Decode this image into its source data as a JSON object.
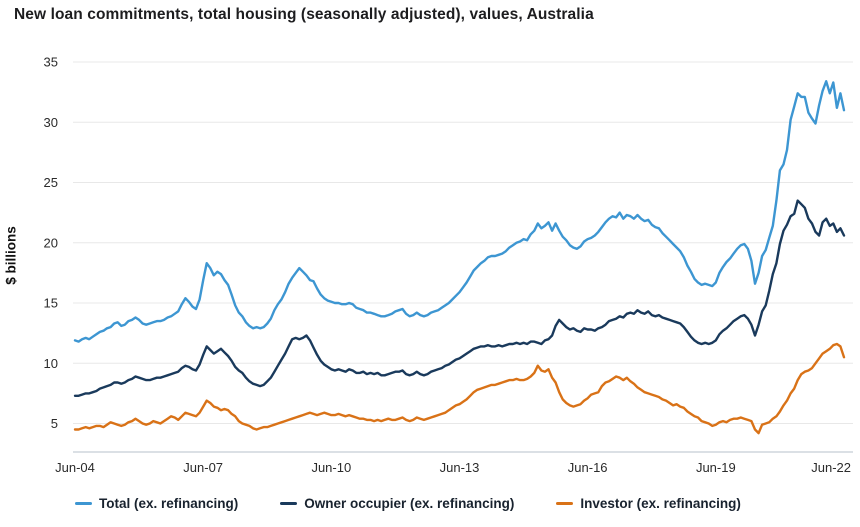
{
  "title": "New loan commitments, total housing (seasonally adjusted), values, Australia",
  "y_axis": {
    "title": "$ billions",
    "ticks": [
      35,
      30,
      25,
      20,
      15,
      10,
      5
    ]
  },
  "x_axis": {
    "ticks": [
      {
        "label": "Jun-04",
        "month_index": 0
      },
      {
        "label": "Jun-07",
        "month_index": 36
      },
      {
        "label": "Jun-10",
        "month_index": 72
      },
      {
        "label": "Jun-13",
        "month_index": 108
      },
      {
        "label": "Jun-16",
        "month_index": 144
      },
      {
        "label": "Jun-19",
        "month_index": 180
      },
      {
        "label": "Jun-22",
        "month_index": 216
      }
    ]
  },
  "legend": {
    "items": [
      {
        "label": "Total (ex. refinancing)",
        "color": "#3d96d2"
      },
      {
        "label": "Owner occupier (ex. refinancing)",
        "color": "#1a3a5c"
      },
      {
        "label": "Investor (ex. refinancing)",
        "color": "#d97217"
      }
    ]
  },
  "colors": {
    "grid": "#e8e8e8",
    "axis_line": "#c5cdd5",
    "tick_text": "#2b2b2b"
  },
  "chart_data": {
    "type": "line",
    "title": "New loan commitments, total housing (seasonally adjusted), values, Australia",
    "ylabel": "$ billions",
    "x_start": "Jun-2004",
    "x_end": "Jun-2022",
    "frequency": "monthly",
    "ylim": [
      2.6,
      35.5
    ],
    "grid": "horizontal",
    "legend_position": "bottom",
    "series": [
      {
        "name": "Total (ex. refinancing)",
        "color": "#3d96d2",
        "values": [
          11.9,
          11.8,
          12.0,
          12.1,
          12.0,
          12.2,
          12.4,
          12.6,
          12.7,
          12.9,
          13.0,
          13.3,
          13.4,
          13.1,
          13.2,
          13.5,
          13.6,
          13.8,
          13.6,
          13.3,
          13.2,
          13.3,
          13.4,
          13.5,
          13.5,
          13.6,
          13.8,
          13.9,
          14.1,
          14.3,
          14.9,
          15.4,
          15.1,
          14.7,
          14.5,
          15.3,
          16.9,
          18.3,
          17.9,
          17.3,
          17.6,
          17.4,
          16.9,
          16.5,
          15.7,
          14.8,
          14.2,
          13.9,
          13.4,
          13.1,
          12.9,
          13.0,
          12.9,
          13.0,
          13.3,
          13.7,
          14.4,
          14.9,
          15.3,
          15.9,
          16.6,
          17.1,
          17.5,
          17.9,
          17.6,
          17.3,
          16.9,
          16.8,
          16.2,
          15.7,
          15.4,
          15.2,
          15.1,
          15.0,
          15.0,
          14.9,
          14.9,
          15.0,
          14.9,
          14.6,
          14.5,
          14.4,
          14.2,
          14.2,
          14.1,
          14.0,
          13.9,
          13.9,
          14.0,
          14.1,
          14.3,
          14.4,
          14.5,
          14.1,
          13.9,
          14.0,
          14.2,
          14.0,
          13.9,
          14.0,
          14.2,
          14.3,
          14.4,
          14.6,
          14.8,
          15.0,
          15.3,
          15.6,
          15.9,
          16.3,
          16.7,
          17.2,
          17.7,
          18.0,
          18.3,
          18.5,
          18.8,
          18.9,
          18.9,
          19.0,
          19.1,
          19.3,
          19.6,
          19.8,
          20.0,
          20.1,
          20.3,
          20.2,
          20.7,
          21.0,
          21.6,
          21.2,
          21.4,
          21.7,
          21.0,
          21.6,
          21.0,
          20.5,
          20.2,
          19.8,
          19.6,
          19.5,
          19.7,
          20.1,
          20.3,
          20.4,
          20.6,
          20.9,
          21.3,
          21.7,
          22.0,
          22.2,
          22.1,
          22.5,
          22.0,
          22.3,
          22.2,
          22.0,
          22.3,
          22.0,
          21.8,
          21.9,
          21.5,
          21.3,
          21.2,
          20.8,
          20.5,
          20.2,
          19.9,
          19.6,
          19.3,
          18.8,
          18.1,
          17.6,
          17.0,
          16.7,
          16.5,
          16.6,
          16.5,
          16.4,
          16.7,
          17.5,
          18.0,
          18.4,
          18.7,
          19.1,
          19.5,
          19.8,
          19.9,
          19.5,
          18.5,
          16.6,
          17.5,
          18.9,
          19.4,
          20.4,
          21.4,
          23.5,
          26.0,
          26.5,
          27.7,
          30.2,
          31.3,
          32.4,
          32.1,
          32.1,
          30.8,
          30.3,
          29.9,
          31.4,
          32.6,
          33.4,
          32.4,
          33.3,
          31.2,
          32.4,
          31.0
        ]
      },
      {
        "name": "Owner occupier (ex. refinancing)",
        "color": "#1a3a5c",
        "values": [
          7.3,
          7.3,
          7.4,
          7.5,
          7.5,
          7.6,
          7.7,
          7.9,
          8.0,
          8.1,
          8.2,
          8.4,
          8.4,
          8.3,
          8.4,
          8.6,
          8.7,
          8.9,
          8.8,
          8.7,
          8.6,
          8.6,
          8.7,
          8.8,
          8.8,
          8.9,
          9.0,
          9.1,
          9.2,
          9.3,
          9.6,
          9.8,
          9.7,
          9.5,
          9.4,
          9.9,
          10.7,
          11.4,
          11.1,
          10.8,
          11.0,
          11.2,
          10.9,
          10.6,
          10.2,
          9.7,
          9.4,
          9.2,
          8.8,
          8.5,
          8.3,
          8.2,
          8.1,
          8.2,
          8.5,
          8.8,
          9.3,
          9.8,
          10.3,
          10.8,
          11.4,
          12.0,
          12.1,
          12.0,
          12.1,
          12.3,
          11.9,
          11.3,
          10.7,
          10.2,
          9.9,
          9.7,
          9.5,
          9.4,
          9.5,
          9.4,
          9.3,
          9.5,
          9.4,
          9.2,
          9.2,
          9.3,
          9.1,
          9.2,
          9.1,
          9.2,
          9.0,
          9.0,
          9.1,
          9.2,
          9.3,
          9.3,
          9.4,
          9.1,
          9.0,
          9.1,
          9.3,
          9.1,
          9.0,
          9.1,
          9.3,
          9.4,
          9.5,
          9.6,
          9.8,
          9.9,
          10.1,
          10.3,
          10.4,
          10.6,
          10.8,
          11.0,
          11.2,
          11.3,
          11.4,
          11.4,
          11.5,
          11.4,
          11.4,
          11.5,
          11.4,
          11.5,
          11.6,
          11.6,
          11.7,
          11.6,
          11.7,
          11.6,
          11.8,
          11.8,
          11.7,
          11.6,
          11.9,
          12.0,
          12.3,
          13.1,
          13.6,
          13.3,
          13.0,
          12.8,
          12.9,
          12.7,
          12.6,
          12.9,
          12.8,
          12.8,
          12.7,
          12.9,
          13.0,
          13.2,
          13.5,
          13.6,
          13.7,
          13.9,
          13.8,
          14.1,
          14.2,
          14.1,
          14.4,
          14.2,
          14.1,
          14.3,
          14.0,
          13.9,
          14.0,
          13.8,
          13.7,
          13.6,
          13.5,
          13.4,
          13.3,
          13.0,
          12.6,
          12.2,
          11.9,
          11.7,
          11.6,
          11.7,
          11.6,
          11.7,
          11.9,
          12.4,
          12.7,
          12.9,
          13.2,
          13.5,
          13.7,
          13.9,
          14.0,
          13.7,
          13.2,
          12.3,
          13.2,
          14.3,
          14.8,
          16.0,
          17.4,
          18.3,
          19.9,
          21.0,
          21.5,
          22.2,
          22.4,
          23.5,
          23.2,
          22.9,
          22.0,
          21.6,
          20.9,
          20.6,
          21.7,
          22.0,
          21.4,
          21.6,
          20.9,
          21.2,
          20.6
        ]
      },
      {
        "name": "Investor (ex. refinancing)",
        "color": "#d97217",
        "values": [
          4.5,
          4.5,
          4.6,
          4.7,
          4.6,
          4.7,
          4.8,
          4.8,
          4.7,
          4.9,
          5.1,
          5.0,
          4.9,
          4.8,
          4.9,
          5.1,
          5.2,
          5.4,
          5.2,
          5.0,
          4.9,
          5.0,
          5.2,
          5.1,
          5.0,
          5.2,
          5.4,
          5.6,
          5.5,
          5.3,
          5.6,
          5.9,
          5.8,
          5.7,
          5.6,
          5.9,
          6.4,
          6.9,
          6.7,
          6.4,
          6.3,
          6.1,
          6.2,
          6.1,
          5.8,
          5.6,
          5.2,
          5.0,
          4.9,
          4.8,
          4.6,
          4.5,
          4.6,
          4.7,
          4.7,
          4.8,
          4.9,
          5.0,
          5.1,
          5.2,
          5.3,
          5.4,
          5.5,
          5.6,
          5.7,
          5.8,
          5.9,
          5.8,
          5.7,
          5.8,
          5.9,
          5.8,
          5.7,
          5.7,
          5.8,
          5.7,
          5.6,
          5.7,
          5.6,
          5.5,
          5.4,
          5.4,
          5.3,
          5.3,
          5.2,
          5.3,
          5.2,
          5.3,
          5.4,
          5.3,
          5.3,
          5.4,
          5.5,
          5.3,
          5.2,
          5.3,
          5.5,
          5.4,
          5.3,
          5.4,
          5.5,
          5.6,
          5.7,
          5.8,
          5.9,
          6.1,
          6.3,
          6.5,
          6.6,
          6.8,
          7.0,
          7.3,
          7.6,
          7.8,
          7.9,
          8.0,
          8.1,
          8.2,
          8.2,
          8.3,
          8.4,
          8.5,
          8.6,
          8.6,
          8.7,
          8.6,
          8.6,
          8.7,
          8.9,
          9.2,
          9.8,
          9.4,
          9.3,
          9.5,
          8.8,
          8.4,
          7.6,
          7.0,
          6.7,
          6.5,
          6.4,
          6.5,
          6.6,
          6.9,
          7.1,
          7.4,
          7.5,
          7.6,
          8.1,
          8.4,
          8.5,
          8.7,
          8.9,
          8.8,
          8.6,
          8.8,
          8.5,
          8.3,
          8.0,
          7.8,
          7.6,
          7.5,
          7.4,
          7.3,
          7.2,
          7.0,
          6.9,
          6.7,
          6.5,
          6.6,
          6.4,
          6.3,
          6.0,
          5.8,
          5.6,
          5.5,
          5.2,
          5.1,
          5.0,
          4.8,
          4.9,
          5.1,
          5.2,
          5.1,
          5.3,
          5.4,
          5.4,
          5.5,
          5.4,
          5.3,
          5.2,
          4.5,
          4.2,
          4.9,
          5.0,
          5.1,
          5.4,
          5.6,
          6.0,
          6.5,
          6.9,
          7.5,
          7.9,
          8.6,
          9.1,
          9.3,
          9.4,
          9.6,
          10.0,
          10.4,
          10.8,
          11.0,
          11.2,
          11.5,
          11.6,
          11.4,
          10.5
        ]
      }
    ]
  }
}
